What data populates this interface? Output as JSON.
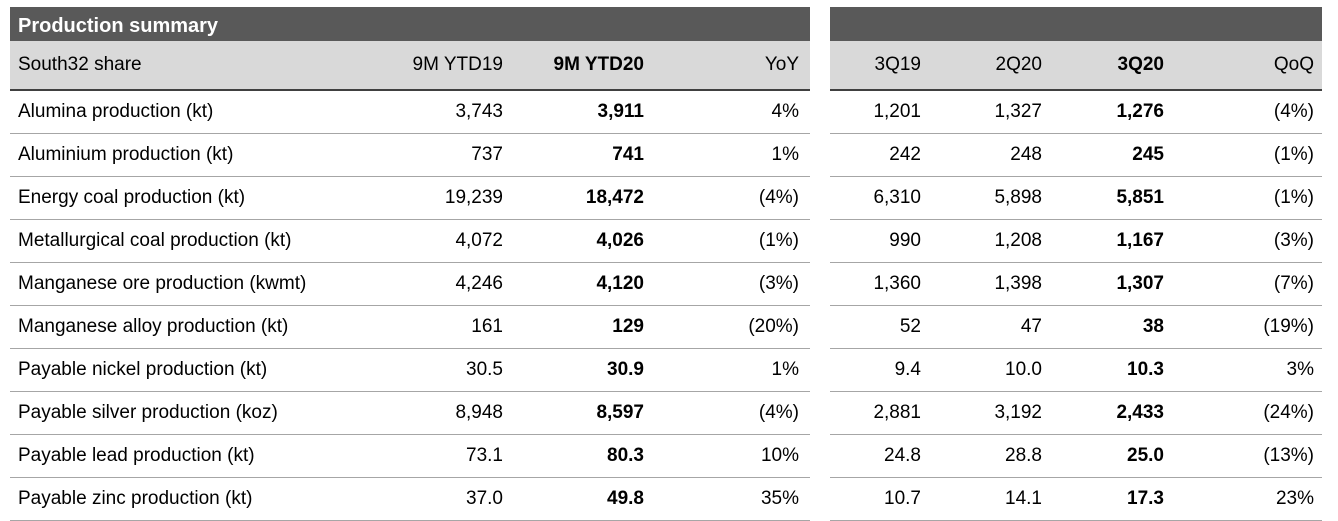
{
  "title": "Production summary",
  "columns": {
    "label": "South32 share",
    "ytd19": "9M YTD19",
    "ytd20": "9M YTD20",
    "yoy": "YoY",
    "q3_19": "3Q19",
    "q2_20": "2Q20",
    "q3_20": "3Q20",
    "qoq": "QoQ"
  },
  "rows": [
    {
      "label": "Alumina production (kt)",
      "ytd19": "3,743",
      "ytd20": "3,911",
      "yoy": "4%",
      "q3_19": "1,201",
      "q2_20": "1,327",
      "q3_20": "1,276",
      "qoq": "(4%)"
    },
    {
      "label": "Aluminium production (kt)",
      "ytd19": "737",
      "ytd20": "741",
      "yoy": "1%",
      "q3_19": "242",
      "q2_20": "248",
      "q3_20": "245",
      "qoq": "(1%)"
    },
    {
      "label": "Energy coal production (kt)",
      "ytd19": "19,239",
      "ytd20": "18,472",
      "yoy": "(4%)",
      "q3_19": "6,310",
      "q2_20": "5,898",
      "q3_20": "5,851",
      "qoq": "(1%)"
    },
    {
      "label": "Metallurgical coal production (kt)",
      "ytd19": "4,072",
      "ytd20": "4,026",
      "yoy": "(1%)",
      "q3_19": "990",
      "q2_20": "1,208",
      "q3_20": "1,167",
      "qoq": "(3%)"
    },
    {
      "label": "Manganese ore production (kwmt)",
      "ytd19": "4,246",
      "ytd20": "4,120",
      "yoy": "(3%)",
      "q3_19": "1,360",
      "q2_20": "1,398",
      "q3_20": "1,307",
      "qoq": "(7%)"
    },
    {
      "label": "Manganese alloy production (kt)",
      "ytd19": "161",
      "ytd20": "129",
      "yoy": "(20%)",
      "q3_19": "52",
      "q2_20": "47",
      "q3_20": "38",
      "qoq": "(19%)"
    },
    {
      "label": "Payable nickel production (kt)",
      "ytd19": "30.5",
      "ytd20": "30.9",
      "yoy": "1%",
      "q3_19": "9.4",
      "q2_20": "10.0",
      "q3_20": "10.3",
      "qoq": "3%"
    },
    {
      "label": "Payable silver production (koz)",
      "ytd19": "8,948",
      "ytd20": "8,597",
      "yoy": "(4%)",
      "q3_19": "2,881",
      "q2_20": "3,192",
      "q3_20": "2,433",
      "qoq": "(24%)"
    },
    {
      "label": "Payable lead production (kt)",
      "ytd19": "73.1",
      "ytd20": "80.3",
      "yoy": "10%",
      "q3_19": "24.8",
      "q2_20": "28.8",
      "q3_20": "25.0",
      "qoq": "(13%)"
    },
    {
      "label": "Payable zinc production (kt)",
      "ytd19": "37.0",
      "ytd20": "49.8",
      "yoy": "35%",
      "q3_19": "10.7",
      "q2_20": "14.1",
      "q3_20": "17.3",
      "qoq": "23%"
    }
  ]
}
